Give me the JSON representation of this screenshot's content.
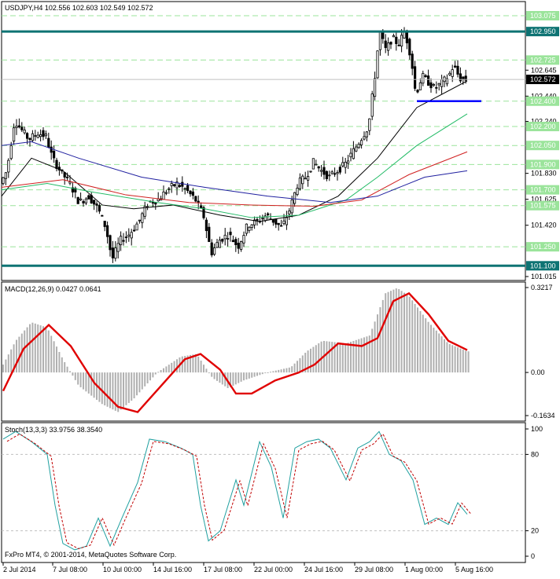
{
  "main": {
    "symbol_header": "USDJPY,H4  102.556 102.603 102.549 102.572",
    "price_axis": [
      "103.075",
      "102.950",
      "102.725",
      "102.645",
      "102.572",
      "102.440",
      "102.400",
      "102.240",
      "102.200",
      "102.050",
      "101.900",
      "101.830",
      "101.700",
      "101.625",
      "101.575",
      "101.420",
      "101.250",
      "101.100",
      "101.015"
    ],
    "highlighted_levels": [
      {
        "label": "102.950",
        "color": "#0e7373"
      },
      {
        "label": "102.572",
        "color": "#000000"
      },
      {
        "label": "102.400",
        "color": "#9be49b"
      },
      {
        "label": "101.100",
        "color": "#0e7373"
      }
    ]
  },
  "macd": {
    "header": "MACD(12,26,9) 0.0427 0.0641",
    "axis": [
      "0.3217",
      "0.00",
      "-0.1634"
    ]
  },
  "stoch": {
    "header": "Stoch(13,3,3) 33.9756 38.3540",
    "axis": [
      "100",
      "80",
      "20",
      "0"
    ]
  },
  "time_axis": [
    "2 Jul 2014",
    "7 Jul 08:00",
    "10 Jul 00:00",
    "14 Jul 16:00",
    "17 Jul 08:00",
    "22 Jul 00:00",
    "24 Jul 16:00",
    "29 Jul 08:00",
    "1 Aug 00:00",
    "5 Aug 16:00"
  ],
  "footer": "FxPro MT4, © 2001-2014, MetaQuotes Software Corp.",
  "colors": {
    "teal_level": "#0e7373",
    "blue_level": "#0000ff",
    "guide_green": "#9be49b",
    "macd_signal": "#e00000",
    "hist": "#b0b0b0",
    "stoch_main": "#20a0a0",
    "stoch_signal": "#c00000"
  }
}
